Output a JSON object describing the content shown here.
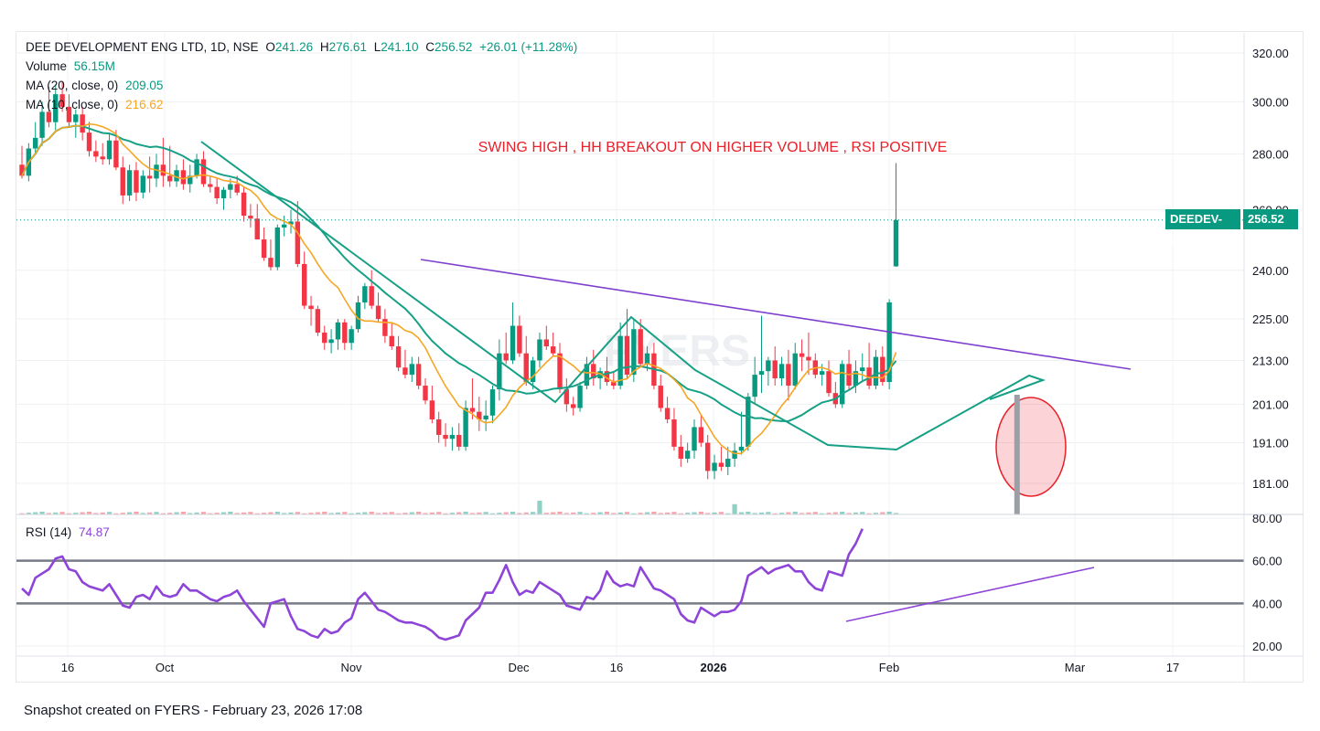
{
  "header": {
    "name": "DEE DEVELOPMENT ENG LTD, 1D, NSE",
    "open_label": "O",
    "open": "241.26",
    "high_label": "H",
    "high": "276.61",
    "low_label": "L",
    "low": "241.10",
    "close_label": "C",
    "close": "256.52",
    "change": "+26.01 (+11.28%)"
  },
  "indicators": {
    "volume_label": "Volume",
    "volume_value": "56.15M",
    "ma20_label": "MA (20, close, 0)",
    "ma20_value": "209.05",
    "ma10_label": "MA (10, close, 0)",
    "ma10_value": "216.62",
    "rsi_label": "RSI (14)",
    "rsi_value": "74.87"
  },
  "price_tag": {
    "symbol": "DEEDEV-EQ",
    "price": "256.52"
  },
  "annotation": "SWING HIGH , HH BREAKOUT ON HIGHER VOLUME , RSI POSITIVE",
  "footer": "Snapshot created on FYERS - February 23, 2026 17:08",
  "colors": {
    "up": "#089981",
    "down": "#f23645",
    "ma20": "#16a085",
    "ma10": "#f5a623",
    "rsi": "#8e44d8",
    "trendline": "#7e3fcf",
    "annotation": "#e8202a"
  },
  "chart_data": {
    "type": "candlestick",
    "price_axis": {
      "scale": "log",
      "ticks": [
        "320.00",
        "300.00",
        "280.00",
        "260.00",
        "240.00",
        "225.00",
        "213.00",
        "201.00",
        "191.00",
        "181.00"
      ]
    },
    "rsi_axis": {
      "range": [
        20,
        80
      ],
      "ticks": [
        "80.00",
        "60.00",
        "40.00",
        "20.00"
      ],
      "levels": [
        60,
        40
      ]
    },
    "x_axis_labels": [
      "16",
      "Oct",
      "Nov",
      "Dec",
      "16",
      "2026",
      "Feb",
      "Mar",
      "17"
    ],
    "candles": [
      {
        "o": 276,
        "h": 283,
        "l": 271,
        "c": 272
      },
      {
        "o": 272,
        "h": 284,
        "l": 270,
        "c": 282
      },
      {
        "o": 282,
        "h": 292,
        "l": 280,
        "c": 286
      },
      {
        "o": 286,
        "h": 300,
        "l": 283,
        "c": 296
      },
      {
        "o": 296,
        "h": 306,
        "l": 290,
        "c": 292
      },
      {
        "o": 292,
        "h": 307,
        "l": 289,
        "c": 303
      },
      {
        "o": 303,
        "h": 308,
        "l": 296,
        "c": 298
      },
      {
        "o": 298,
        "h": 303,
        "l": 290,
        "c": 292
      },
      {
        "o": 292,
        "h": 297,
        "l": 286,
        "c": 295
      },
      {
        "o": 295,
        "h": 298,
        "l": 285,
        "c": 288
      },
      {
        "o": 288,
        "h": 292,
        "l": 279,
        "c": 281
      },
      {
        "o": 281,
        "h": 285,
        "l": 277,
        "c": 279
      },
      {
        "o": 279,
        "h": 284,
        "l": 276,
        "c": 278
      },
      {
        "o": 278,
        "h": 288,
        "l": 276,
        "c": 285
      },
      {
        "o": 285,
        "h": 289,
        "l": 274,
        "c": 275
      },
      {
        "o": 275,
        "h": 279,
        "l": 262,
        "c": 265
      },
      {
        "o": 265,
        "h": 276,
        "l": 263,
        "c": 274
      },
      {
        "o": 274,
        "h": 277,
        "l": 263,
        "c": 266
      },
      {
        "o": 266,
        "h": 274,
        "l": 264,
        "c": 272
      },
      {
        "o": 272,
        "h": 279,
        "l": 266,
        "c": 271
      },
      {
        "o": 271,
        "h": 280,
        "l": 268,
        "c": 276
      },
      {
        "o": 276,
        "h": 286,
        "l": 268,
        "c": 272
      },
      {
        "o": 272,
        "h": 283,
        "l": 268,
        "c": 270
      },
      {
        "o": 270,
        "h": 276,
        "l": 268,
        "c": 274
      },
      {
        "o": 274,
        "h": 278,
        "l": 267,
        "c": 269
      },
      {
        "o": 269,
        "h": 276,
        "l": 266,
        "c": 272
      },
      {
        "o": 272,
        "h": 280,
        "l": 271,
        "c": 278
      },
      {
        "o": 278,
        "h": 281,
        "l": 268,
        "c": 269
      },
      {
        "o": 269,
        "h": 272,
        "l": 266,
        "c": 268
      },
      {
        "o": 268,
        "h": 271,
        "l": 262,
        "c": 264
      },
      {
        "o": 264,
        "h": 268,
        "l": 260,
        "c": 267
      },
      {
        "o": 267,
        "h": 271,
        "l": 264,
        "c": 269
      },
      {
        "o": 269,
        "h": 272,
        "l": 265,
        "c": 266
      },
      {
        "o": 266,
        "h": 268,
        "l": 256,
        "c": 258
      },
      {
        "o": 258,
        "h": 262,
        "l": 254,
        "c": 257
      },
      {
        "o": 257,
        "h": 262,
        "l": 250,
        "c": 250
      },
      {
        "o": 250,
        "h": 254,
        "l": 243,
        "c": 244
      },
      {
        "o": 244,
        "h": 250,
        "l": 240,
        "c": 241
      },
      {
        "o": 241,
        "h": 255,
        "l": 240,
        "c": 254
      },
      {
        "o": 254,
        "h": 258,
        "l": 251,
        "c": 255
      },
      {
        "o": 255,
        "h": 260,
        "l": 252,
        "c": 256
      },
      {
        "o": 256,
        "h": 263,
        "l": 241,
        "c": 242
      },
      {
        "o": 242,
        "h": 246,
        "l": 228,
        "c": 229
      },
      {
        "o": 229,
        "h": 232,
        "l": 223,
        "c": 228
      },
      {
        "o": 228,
        "h": 229,
        "l": 220,
        "c": 221
      },
      {
        "o": 221,
        "h": 223,
        "l": 216,
        "c": 218
      },
      {
        "o": 218,
        "h": 222,
        "l": 215,
        "c": 219
      },
      {
        "o": 219,
        "h": 225,
        "l": 216,
        "c": 224
      },
      {
        "o": 224,
        "h": 225,
        "l": 216,
        "c": 218
      },
      {
        "o": 218,
        "h": 223,
        "l": 216,
        "c": 222
      },
      {
        "o": 222,
        "h": 232,
        "l": 221,
        "c": 230
      },
      {
        "o": 230,
        "h": 236,
        "l": 228,
        "c": 235
      },
      {
        "o": 235,
        "h": 240,
        "l": 228,
        "c": 229
      },
      {
        "o": 229,
        "h": 233,
        "l": 224,
        "c": 225
      },
      {
        "o": 225,
        "h": 228,
        "l": 218,
        "c": 220
      },
      {
        "o": 220,
        "h": 224,
        "l": 216,
        "c": 217
      },
      {
        "o": 217,
        "h": 220,
        "l": 210,
        "c": 211
      },
      {
        "o": 211,
        "h": 216,
        "l": 208,
        "c": 209
      },
      {
        "o": 209,
        "h": 214,
        "l": 207,
        "c": 212
      },
      {
        "o": 212,
        "h": 214,
        "l": 205,
        "c": 206
      },
      {
        "o": 206,
        "h": 208,
        "l": 201,
        "c": 202
      },
      {
        "o": 202,
        "h": 206,
        "l": 196,
        "c": 197
      },
      {
        "o": 197,
        "h": 199,
        "l": 191,
        "c": 193
      },
      {
        "o": 193,
        "h": 196,
        "l": 190,
        "c": 192
      },
      {
        "o": 192,
        "h": 195,
        "l": 189,
        "c": 193
      },
      {
        "o": 193,
        "h": 196,
        "l": 189,
        "c": 190
      },
      {
        "o": 190,
        "h": 202,
        "l": 189,
        "c": 200
      },
      {
        "o": 200,
        "h": 208,
        "l": 197,
        "c": 199
      },
      {
        "o": 199,
        "h": 203,
        "l": 194,
        "c": 197
      },
      {
        "o": 197,
        "h": 202,
        "l": 194,
        "c": 198
      },
      {
        "o": 198,
        "h": 206,
        "l": 196,
        "c": 205
      },
      {
        "o": 205,
        "h": 219,
        "l": 202,
        "c": 215
      },
      {
        "o": 215,
        "h": 221,
        "l": 212,
        "c": 213
      },
      {
        "o": 213,
        "h": 230,
        "l": 212,
        "c": 223
      },
      {
        "o": 223,
        "h": 226,
        "l": 214,
        "c": 215
      },
      {
        "o": 215,
        "h": 220,
        "l": 206,
        "c": 207
      },
      {
        "o": 207,
        "h": 214,
        "l": 205,
        "c": 213
      },
      {
        "o": 213,
        "h": 221,
        "l": 211,
        "c": 219
      },
      {
        "o": 219,
        "h": 223,
        "l": 216,
        "c": 217
      },
      {
        "o": 217,
        "h": 221,
        "l": 214,
        "c": 215
      },
      {
        "o": 215,
        "h": 218,
        "l": 204,
        "c": 205
      },
      {
        "o": 205,
        "h": 208,
        "l": 199,
        "c": 201
      },
      {
        "o": 201,
        "h": 203,
        "l": 198,
        "c": 200
      },
      {
        "o": 200,
        "h": 207,
        "l": 199,
        "c": 206
      },
      {
        "o": 206,
        "h": 214,
        "l": 205,
        "c": 212
      },
      {
        "o": 212,
        "h": 216,
        "l": 206,
        "c": 208
      },
      {
        "o": 208,
        "h": 211,
        "l": 205,
        "c": 210
      },
      {
        "o": 210,
        "h": 214,
        "l": 206,
        "c": 207
      },
      {
        "o": 207,
        "h": 210,
        "l": 205,
        "c": 206
      },
      {
        "o": 206,
        "h": 224,
        "l": 205,
        "c": 220
      },
      {
        "o": 220,
        "h": 228,
        "l": 208,
        "c": 209
      },
      {
        "o": 209,
        "h": 225,
        "l": 207,
        "c": 222
      },
      {
        "o": 222,
        "h": 225,
        "l": 211,
        "c": 212
      },
      {
        "o": 212,
        "h": 217,
        "l": 210,
        "c": 215
      },
      {
        "o": 215,
        "h": 218,
        "l": 205,
        "c": 206
      },
      {
        "o": 206,
        "h": 209,
        "l": 199,
        "c": 200
      },
      {
        "o": 200,
        "h": 203,
        "l": 196,
        "c": 197
      },
      {
        "o": 197,
        "h": 200,
        "l": 189,
        "c": 190
      },
      {
        "o": 190,
        "h": 193,
        "l": 185,
        "c": 187
      },
      {
        "o": 187,
        "h": 191,
        "l": 186,
        "c": 189
      },
      {
        "o": 189,
        "h": 197,
        "l": 187,
        "c": 195
      },
      {
        "o": 195,
        "h": 198,
        "l": 190,
        "c": 191
      },
      {
        "o": 191,
        "h": 193,
        "l": 182,
        "c": 184
      },
      {
        "o": 184,
        "h": 188,
        "l": 182,
        "c": 186
      },
      {
        "o": 186,
        "h": 190,
        "l": 184,
        "c": 185
      },
      {
        "o": 185,
        "h": 190,
        "l": 183,
        "c": 187
      },
      {
        "o": 187,
        "h": 191,
        "l": 185,
        "c": 189
      },
      {
        "o": 189,
        "h": 199,
        "l": 188,
        "c": 190
      },
      {
        "o": 190,
        "h": 204,
        "l": 189,
        "c": 203
      },
      {
        "o": 203,
        "h": 214,
        "l": 201,
        "c": 209
      },
      {
        "o": 209,
        "h": 226,
        "l": 204,
        "c": 210
      },
      {
        "o": 210,
        "h": 214,
        "l": 206,
        "c": 213
      },
      {
        "o": 213,
        "h": 217,
        "l": 206,
        "c": 208
      },
      {
        "o": 208,
        "h": 214,
        "l": 206,
        "c": 212
      },
      {
        "o": 212,
        "h": 216,
        "l": 202,
        "c": 206
      },
      {
        "o": 206,
        "h": 218,
        "l": 205,
        "c": 215
      },
      {
        "o": 215,
        "h": 219,
        "l": 210,
        "c": 214
      },
      {
        "o": 214,
        "h": 221,
        "l": 209,
        "c": 213
      },
      {
        "o": 213,
        "h": 215,
        "l": 208,
        "c": 209
      },
      {
        "o": 209,
        "h": 212,
        "l": 206,
        "c": 210
      },
      {
        "o": 210,
        "h": 213,
        "l": 203,
        "c": 204
      },
      {
        "o": 204,
        "h": 207,
        "l": 200,
        "c": 201
      },
      {
        "o": 201,
        "h": 213,
        "l": 200,
        "c": 212
      },
      {
        "o": 212,
        "h": 216,
        "l": 205,
        "c": 206
      },
      {
        "o": 206,
        "h": 213,
        "l": 204,
        "c": 210
      },
      {
        "o": 210,
        "h": 215,
        "l": 207,
        "c": 211
      },
      {
        "o": 211,
        "h": 218,
        "l": 205,
        "c": 206
      },
      {
        "o": 206,
        "h": 216,
        "l": 205,
        "c": 214
      },
      {
        "o": 214,
        "h": 217,
        "l": 206,
        "c": 207
      },
      {
        "o": 207,
        "h": 231,
        "l": 205,
        "c": 230
      },
      {
        "o": 241.26,
        "h": 276.61,
        "l": 241.1,
        "c": 256.52
      }
    ],
    "volume_highlights": [
      {
        "bar": 77,
        "level": 0.6
      },
      {
        "bar": 106,
        "level": 0.45
      },
      {
        "bar": 147,
        "level": 0.25
      },
      {
        "bar": 148,
        "level": 1.0
      }
    ],
    "rsi": [
      47,
      44,
      52,
      54,
      56,
      61,
      62,
      56,
      55,
      50,
      48,
      47,
      46,
      49,
      44,
      39,
      38,
      43,
      44,
      42,
      48,
      44,
      43,
      44,
      49,
      46,
      46,
      44,
      42,
      41,
      43,
      44,
      46,
      41,
      37,
      33,
      29,
      40,
      41,
      42,
      34,
      28,
      27,
      25,
      24,
      28,
      26,
      27,
      31,
      33,
      42,
      45,
      41,
      37,
      36,
      34,
      32,
      31,
      31,
      30,
      29,
      27,
      24,
      23,
      24,
      25,
      32,
      35,
      38,
      45,
      45,
      51,
      58,
      50,
      44,
      46,
      45,
      50,
      48,
      46,
      44,
      39,
      38,
      37,
      43,
      42,
      46,
      55,
      50,
      48,
      49,
      48,
      57,
      52,
      47,
      46,
      44,
      42,
      35,
      32,
      31,
      38,
      36,
      34,
      36,
      36,
      37,
      41,
      53,
      55,
      57,
      54,
      56,
      57,
      58,
      55,
      55,
      50,
      47,
      46,
      55,
      54,
      53,
      63,
      68,
      75
    ]
  }
}
